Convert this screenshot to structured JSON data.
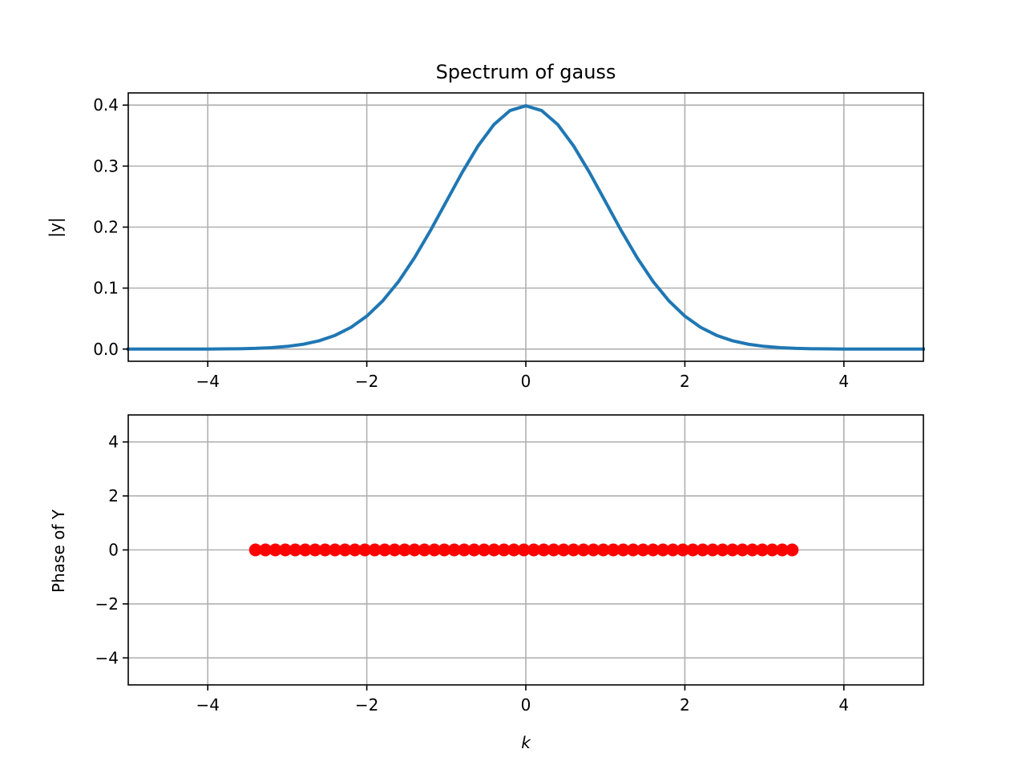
{
  "figure": {
    "background": "#ffffff"
  },
  "chart_data": [
    {
      "type": "line",
      "title": "Spectrum of gauss",
      "xlabel": "",
      "ylabel": "|y|",
      "xlim": [
        -5,
        5
      ],
      "ylim": [
        -0.02,
        0.42
      ],
      "grid": true,
      "xticks": [
        -4,
        -2,
        0,
        2,
        4
      ],
      "xtick_labels": [
        "−4",
        "−2",
        "0",
        "2",
        "4"
      ],
      "yticks": [
        0.0,
        0.1,
        0.2,
        0.3,
        0.4
      ],
      "ytick_labels": [
        "0.0",
        "0.1",
        "0.2",
        "0.3",
        "0.4"
      ],
      "series": [
        {
          "color": "#1f77b4",
          "x": [
            -5.0,
            -4.8,
            -4.6,
            -4.4,
            -4.2,
            -4.0,
            -3.8,
            -3.6,
            -3.4,
            -3.2,
            -3.0,
            -2.8,
            -2.6,
            -2.4,
            -2.2,
            -2.0,
            -1.8,
            -1.6,
            -1.4,
            -1.2,
            -1.0,
            -0.8,
            -0.6,
            -0.4,
            -0.2,
            0.0,
            0.2,
            0.4,
            0.6,
            0.8,
            1.0,
            1.2,
            1.4,
            1.6,
            1.8,
            2.0,
            2.2,
            2.4,
            2.6,
            2.8,
            3.0,
            3.2,
            3.4,
            3.6,
            3.8,
            4.0,
            4.2,
            4.4,
            4.6,
            4.8,
            5.0
          ],
          "y": [
            0.0,
            0.0,
            0.0,
            0.0,
            0.0001,
            0.0001,
            0.0003,
            0.0006,
            0.0012,
            0.0024,
            0.0044,
            0.0079,
            0.0136,
            0.0224,
            0.0355,
            0.054,
            0.079,
            0.1109,
            0.1497,
            0.1942,
            0.242,
            0.2897,
            0.3332,
            0.3683,
            0.391,
            0.3989,
            0.391,
            0.3683,
            0.3332,
            0.2897,
            0.242,
            0.1942,
            0.1497,
            0.1109,
            0.079,
            0.054,
            0.0355,
            0.0224,
            0.0136,
            0.0079,
            0.0044,
            0.0024,
            0.0012,
            0.0006,
            0.0003,
            0.0001,
            0.0001,
            0.0,
            0.0,
            0.0,
            0.0
          ]
        }
      ]
    },
    {
      "type": "scatter",
      "title": "",
      "xlabel": "k",
      "ylabel": "Phase of Y",
      "xlim": [
        -5,
        5
      ],
      "ylim": [
        -5,
        5
      ],
      "grid": true,
      "xticks": [
        -4,
        -2,
        0,
        2,
        4
      ],
      "xtick_labels": [
        "−4",
        "−2",
        "0",
        "2",
        "4"
      ],
      "yticks": [
        -4,
        -2,
        0,
        2,
        4
      ],
      "ytick_labels": [
        "−4",
        "−2",
        "0",
        "2",
        "4"
      ],
      "series": [
        {
          "color": "#ff0000",
          "x": [
            -3.4,
            -3.275,
            -3.15,
            -3.025,
            -2.9,
            -2.775,
            -2.65,
            -2.525,
            -2.4,
            -2.275,
            -2.15,
            -2.025,
            -1.9,
            -1.775,
            -1.65,
            -1.525,
            -1.4,
            -1.275,
            -1.15,
            -1.025,
            -0.9,
            -0.775,
            -0.65,
            -0.525,
            -0.4,
            -0.275,
            -0.15,
            -0.025,
            0.1,
            0.225,
            0.35,
            0.475,
            0.6,
            0.725,
            0.85,
            0.975,
            1.1,
            1.225,
            1.35,
            1.475,
            1.6,
            1.725,
            1.85,
            1.975,
            2.1,
            2.225,
            2.35,
            2.475,
            2.6,
            2.725,
            2.85,
            2.975,
            3.1,
            3.225,
            3.35
          ],
          "y": [
            0,
            0,
            0,
            0,
            0,
            0,
            0,
            0,
            0,
            0,
            0,
            0,
            0,
            0,
            0,
            0,
            0,
            0,
            0,
            0,
            0,
            0,
            0,
            0,
            0,
            0,
            0,
            0,
            0,
            0,
            0,
            0,
            0,
            0,
            0,
            0,
            0,
            0,
            0,
            0,
            0,
            0,
            0,
            0,
            0,
            0,
            0,
            0,
            0,
            0,
            0,
            0,
            0,
            0,
            0
          ]
        }
      ]
    }
  ]
}
